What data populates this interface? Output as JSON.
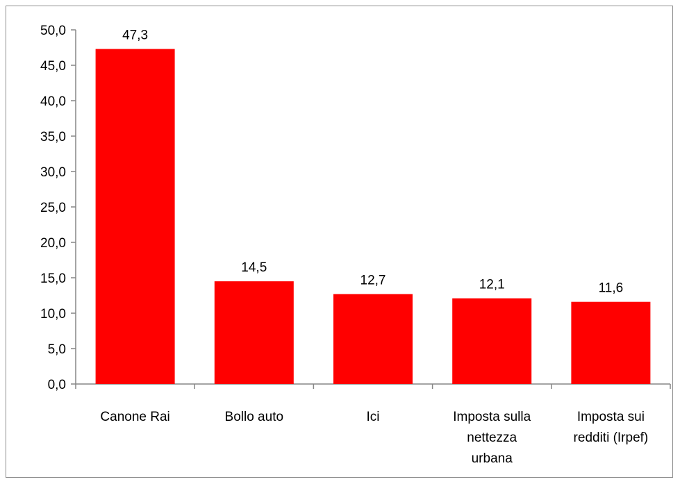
{
  "chart_data": {
    "type": "bar",
    "categories": [
      [
        "Canone Rai"
      ],
      [
        "Bollo auto"
      ],
      [
        "Ici"
      ],
      [
        "Imposta sulla",
        "nettezza",
        "urbana"
      ],
      [
        "Imposta sui",
        "redditi (Irpef)"
      ]
    ],
    "values": [
      47.3,
      14.5,
      12.7,
      12.1,
      11.6
    ],
    "data_labels": [
      "47,3",
      "14,5",
      "12,7",
      "12,1",
      "11,6"
    ],
    "yticks": [
      "0,0",
      "5,0",
      "10,0",
      "15,0",
      "20,0",
      "25,0",
      "30,0",
      "35,0",
      "40,0",
      "45,0",
      "50,0"
    ],
    "ylim": [
      0,
      50
    ],
    "ystep": 5,
    "grid": false,
    "legend": "none",
    "bar_color": "#ff0000",
    "axis_color": "#868686"
  }
}
